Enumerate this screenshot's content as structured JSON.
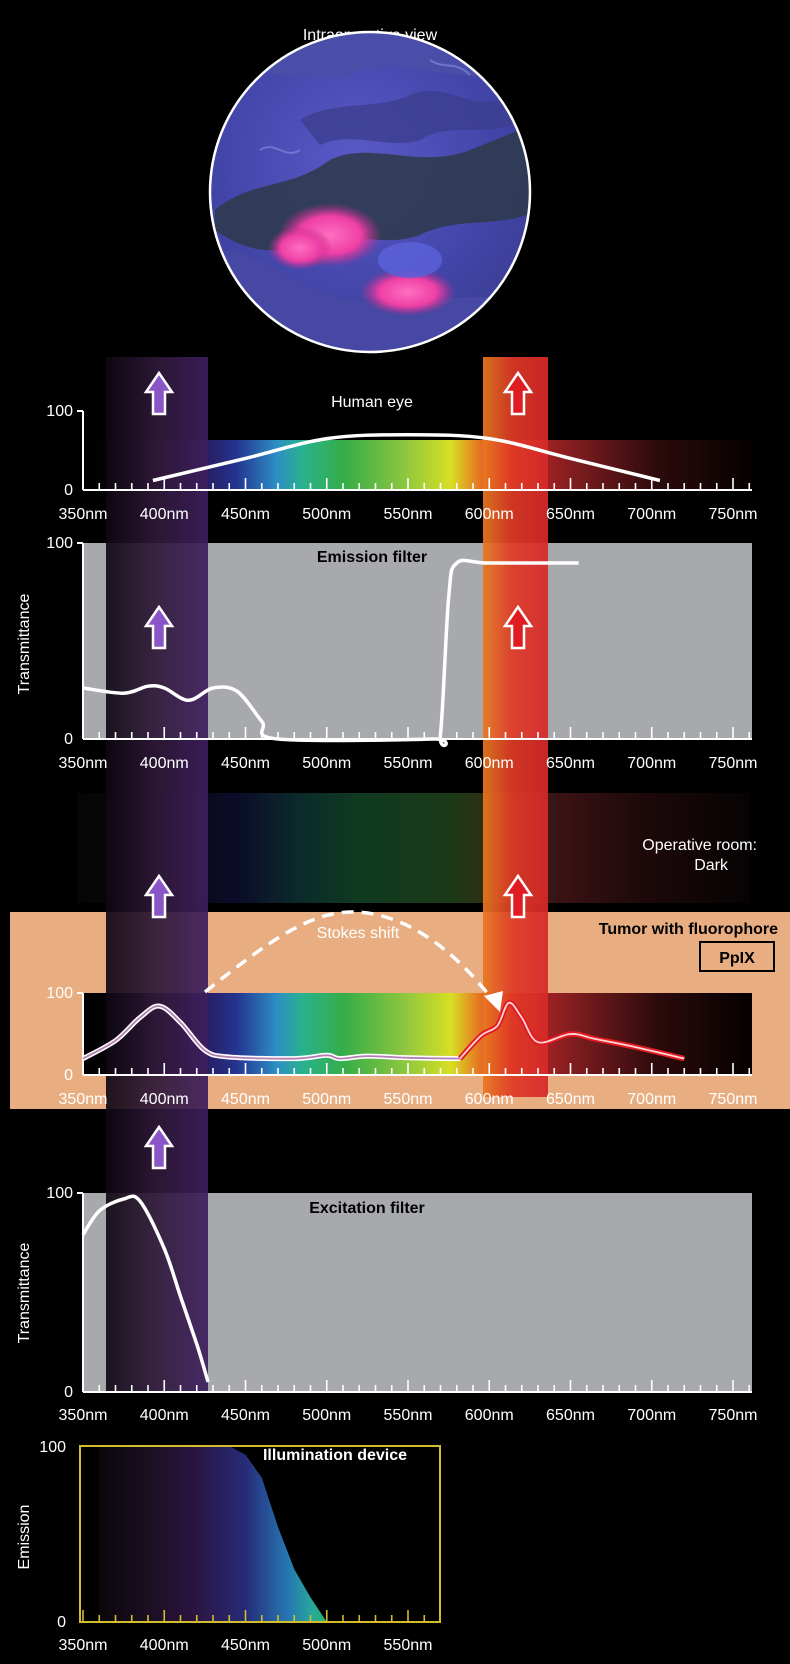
{
  "intraoperative": {
    "title": "Intraoperative view"
  },
  "wavelength_ticks": [
    "350nm",
    "400nm",
    "450nm",
    "500nm",
    "550nm",
    "600nm",
    "650nm",
    "700nm",
    "750nm"
  ],
  "illumination_ticks": [
    "350nm",
    "400nm",
    "450nm",
    "500nm",
    "550nm"
  ],
  "human_eye": {
    "title": "Human eye",
    "y_min": "0",
    "y_max": "100",
    "curve": [
      [
        393,
        12
      ],
      [
        450,
        40
      ],
      [
        500,
        65
      ],
      [
        550,
        70
      ],
      [
        600,
        65
      ],
      [
        650,
        40
      ],
      [
        705,
        12
      ]
    ]
  },
  "emission_filter": {
    "title": "Emission filter",
    "ylabel": "Transmittance",
    "y_min": "0",
    "y_max": "100",
    "curve": [
      [
        350,
        29
      ],
      [
        375,
        26
      ],
      [
        390,
        30
      ],
      [
        400,
        29
      ],
      [
        415,
        22
      ],
      [
        430,
        29
      ],
      [
        445,
        27
      ],
      [
        460,
        10
      ],
      [
        470,
        0
      ],
      [
        565,
        0
      ],
      [
        570,
        3
      ],
      [
        575,
        80
      ],
      [
        580,
        100
      ],
      [
        600,
        100
      ],
      [
        655,
        100
      ]
    ]
  },
  "operative_room": {
    "line1": "Operative room:",
    "line2": "Dark"
  },
  "tumor": {
    "title": "Tumor with fluorophore",
    "badge": "PpIX",
    "stokes_label": "Stokes shift",
    "y_min": "0",
    "y_max": "100",
    "excitation_curve": [
      [
        350,
        20
      ],
      [
        370,
        42
      ],
      [
        385,
        70
      ],
      [
        397,
        84
      ],
      [
        410,
        64
      ],
      [
        425,
        30
      ],
      [
        440,
        22
      ],
      [
        480,
        20
      ],
      [
        500,
        24
      ],
      [
        508,
        20
      ],
      [
        525,
        23
      ],
      [
        550,
        21
      ],
      [
        582,
        20
      ]
    ],
    "emission_curve": [
      [
        582,
        20
      ],
      [
        595,
        48
      ],
      [
        605,
        60
      ],
      [
        612,
        88
      ],
      [
        620,
        70
      ],
      [
        630,
        40
      ],
      [
        650,
        50
      ],
      [
        665,
        44
      ],
      [
        690,
        34
      ],
      [
        720,
        20
      ]
    ]
  },
  "excitation_filter": {
    "title": "Excitation filter",
    "ylabel": "Transmittance",
    "y_min": "0",
    "y_max": "100",
    "curve": [
      [
        350,
        79
      ],
      [
        360,
        91
      ],
      [
        375,
        97
      ],
      [
        385,
        96
      ],
      [
        400,
        72
      ],
      [
        410,
        48
      ],
      [
        420,
        24
      ],
      [
        427,
        5
      ]
    ]
  },
  "illumination": {
    "title": "Illumination device",
    "ylabel": "Emission",
    "y_min": "0",
    "y_max": "100",
    "curve": [
      [
        440,
        100
      ],
      [
        450,
        95
      ],
      [
        460,
        82
      ],
      [
        470,
        54
      ],
      [
        480,
        30
      ],
      [
        490,
        14
      ],
      [
        500,
        0
      ]
    ]
  },
  "colors": {
    "background": "#000000",
    "filter_panel": "#a7a9ac",
    "tumor_band": "#e8ad81",
    "illumination_frame": "#d4bd2c",
    "excitation_arrow": "#8a56c7",
    "emission_arrow": "#e11b22"
  }
}
